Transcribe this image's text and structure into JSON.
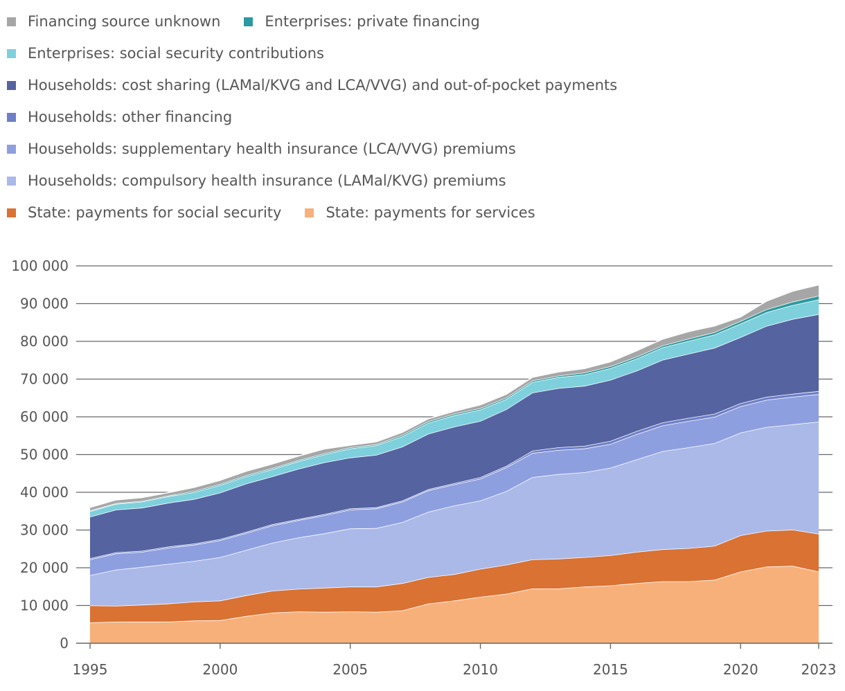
{
  "chart_data": {
    "type": "area",
    "stacked": true,
    "title": "",
    "xlabel": "",
    "ylabel": "",
    "ylim": [
      0,
      100000
    ],
    "yticks": [
      0,
      10000,
      20000,
      30000,
      40000,
      50000,
      60000,
      70000,
      80000,
      90000,
      100000
    ],
    "ytick_labels": [
      "0",
      "10 000",
      "20 000",
      "30 000",
      "40 000",
      "50 000",
      "60 000",
      "70 000",
      "80 000",
      "90 000",
      "100 000"
    ],
    "xlim": [
      1995,
      2023
    ],
    "xticks": [
      1995,
      2000,
      2005,
      2010,
      2015,
      2020,
      2023
    ],
    "xtick_labels": [
      "1995",
      "2000",
      "2005",
      "2010",
      "2015",
      "2020",
      "2023"
    ],
    "grid": true,
    "legend_position": "top",
    "x": [
      1995,
      1996,
      1997,
      1998,
      1999,
      2000,
      2001,
      2002,
      2003,
      2004,
      2005,
      2006,
      2007,
      2008,
      2009,
      2010,
      2011,
      2012,
      2013,
      2014,
      2015,
      2016,
      2017,
      2018,
      2019,
      2020,
      2021,
      2022,
      2023
    ],
    "series": [
      {
        "name": "State: payments for services",
        "color": "#f8b07a",
        "values": [
          5500,
          5700,
          5700,
          5700,
          6000,
          6100,
          7200,
          8100,
          8400,
          8300,
          8400,
          8300,
          8700,
          10500,
          11300,
          12300,
          13100,
          14500,
          14500,
          15000,
          15300,
          15900,
          16400,
          16400,
          16800,
          19000,
          20300,
          20500,
          19000
        ]
      },
      {
        "name": "State: payments for social security",
        "color": "#d97233",
        "values": [
          4500,
          4200,
          4500,
          4800,
          5000,
          5200,
          5500,
          5800,
          6000,
          6400,
          6600,
          6700,
          7200,
          7000,
          7000,
          7400,
          7700,
          7700,
          7900,
          7800,
          8000,
          8300,
          8500,
          8800,
          9000,
          9600,
          9500,
          9600,
          10000
        ]
      },
      {
        "name": "Households: compulsory health insurance (LAMal/KVG) premiums",
        "color": "#abb9e8",
        "values": [
          8000,
          9600,
          10000,
          10500,
          10800,
          11500,
          12000,
          12700,
          13600,
          14400,
          15400,
          15500,
          16200,
          17300,
          18200,
          18100,
          19500,
          21800,
          22400,
          22500,
          23200,
          24500,
          26000,
          26700,
          27200,
          27200,
          27500,
          27900,
          29700
        ]
      },
      {
        "name": "Households: supplementary health insurance (LCA/VVG) premiums",
        "color": "#8e9fe0",
        "values": [
          4200,
          4300,
          4000,
          4300,
          4300,
          4500,
          4500,
          4600,
          4600,
          4800,
          5000,
          5200,
          5400,
          5700,
          5600,
          5800,
          6300,
          6400,
          6400,
          6300,
          6300,
          6700,
          6800,
          7000,
          7000,
          7000,
          7200,
          7300,
          7300
        ]
      },
      {
        "name": "Households: other financing",
        "color": "#6e7fc8",
        "values": [
          300,
          300,
          300,
          300,
          300,
          300,
          300,
          300,
          300,
          300,
          300,
          300,
          300,
          300,
          300,
          400,
          400,
          600,
          700,
          700,
          800,
          800,
          800,
          800,
          800,
          800,
          800,
          800,
          800
        ]
      },
      {
        "name": "Households: cost sharing (LAMal/KVG and LCA/VVG) and out-of-pocket payments",
        "color": "#5563a1",
        "values": [
          11000,
          11300,
          11400,
          11600,
          11800,
          12300,
          12800,
          12700,
          13300,
          13700,
          13500,
          13900,
          14300,
          14700,
          15000,
          14900,
          15000,
          15400,
          15700,
          15900,
          16200,
          16000,
          16600,
          17000,
          17500,
          17500,
          18800,
          19800,
          20400
        ]
      },
      {
        "name": "Enterprises: social security contributions",
        "color": "#7dd0dc",
        "values": [
          1500,
          1500,
          1600,
          1700,
          1800,
          2000,
          1900,
          1900,
          2000,
          2100,
          2400,
          2500,
          2700,
          2900,
          3000,
          3000,
          2700,
          2800,
          2900,
          3000,
          3100,
          3200,
          3300,
          3400,
          3500,
          3600,
          3600,
          3700,
          3900
        ]
      },
      {
        "name": "Enterprises: private financing",
        "color": "#2b9aa0",
        "values": [
          200,
          200,
          200,
          200,
          300,
          300,
          300,
          300,
          300,
          300,
          300,
          300,
          400,
          400,
          400,
          400,
          400,
          400,
          400,
          500,
          500,
          500,
          500,
          600,
          600,
          700,
          800,
          900,
          1000
        ]
      },
      {
        "name": "Financing source unknown",
        "color": "#a6a6a6",
        "values": [
          800,
          900,
          900,
          800,
          1000,
          1000,
          1100,
          1100,
          1100,
          1200,
          600,
          700,
          700,
          700,
          700,
          900,
          900,
          900,
          1000,
          1100,
          1200,
          1600,
          1700,
          1900,
          1700,
          1100,
          2200,
          2800,
          2900
        ]
      }
    ],
    "legend_rows": [
      [
        8,
        7
      ],
      [
        6
      ],
      [
        5
      ],
      [
        4
      ],
      [
        3
      ],
      [
        2
      ],
      [
        1,
        0
      ]
    ]
  }
}
